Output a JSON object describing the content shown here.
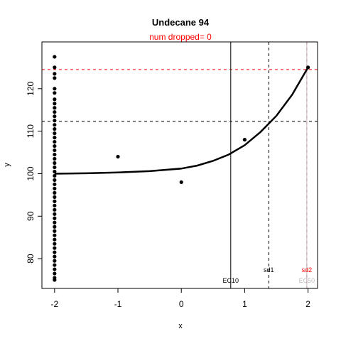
{
  "chart_data": {
    "type": "scatter",
    "title": "Undecane 94",
    "subtitle": "num dropped= 0",
    "xlabel": "x",
    "ylabel": "y",
    "xlim": [
      -2.2,
      2.15
    ],
    "ylim": [
      73,
      131
    ],
    "x_ticks": [
      -2,
      -1,
      0,
      1,
      2
    ],
    "y_ticks": [
      80,
      90,
      100,
      110,
      120
    ],
    "grid": false,
    "points": [
      {
        "x": -2,
        "y": 127.5
      },
      {
        "x": -2,
        "y": 125
      },
      {
        "x": -2,
        "y": 123.5
      },
      {
        "x": -2,
        "y": 122.5
      },
      {
        "x": -2,
        "y": 120
      },
      {
        "x": -2,
        "y": 119
      },
      {
        "x": -2,
        "y": 117.5
      },
      {
        "x": -2,
        "y": 116.5
      },
      {
        "x": -2,
        "y": 115.5
      },
      {
        "x": -2,
        "y": 114.5
      },
      {
        "x": -2,
        "y": 113.5
      },
      {
        "x": -2,
        "y": 112.5
      },
      {
        "x": -2,
        "y": 111.5
      },
      {
        "x": -2,
        "y": 110.5
      },
      {
        "x": -2,
        "y": 109.5
      },
      {
        "x": -2,
        "y": 108.5
      },
      {
        "x": -2,
        "y": 107.5
      },
      {
        "x": -2,
        "y": 106.5
      },
      {
        "x": -2,
        "y": 105.5
      },
      {
        "x": -2,
        "y": 104.5
      },
      {
        "x": -2,
        "y": 103.5
      },
      {
        "x": -2,
        "y": 102.5
      },
      {
        "x": -2,
        "y": 101.5
      },
      {
        "x": -2,
        "y": 100.5
      },
      {
        "x": -2,
        "y": 99.5
      },
      {
        "x": -2,
        "y": 98.5
      },
      {
        "x": -2,
        "y": 97.5
      },
      {
        "x": -2,
        "y": 96.5
      },
      {
        "x": -2,
        "y": 95.5
      },
      {
        "x": -2,
        "y": 94.5
      },
      {
        "x": -2,
        "y": 93.5
      },
      {
        "x": -2,
        "y": 92.5
      },
      {
        "x": -2,
        "y": 91.5
      },
      {
        "x": -2,
        "y": 90.5
      },
      {
        "x": -2,
        "y": 89.5
      },
      {
        "x": -2,
        "y": 88.5
      },
      {
        "x": -2,
        "y": 87.5
      },
      {
        "x": -2,
        "y": 86.5
      },
      {
        "x": -2,
        "y": 85.5
      },
      {
        "x": -2,
        "y": 84.5
      },
      {
        "x": -2,
        "y": 83.5
      },
      {
        "x": -2,
        "y": 82.5
      },
      {
        "x": -2,
        "y": 81.5
      },
      {
        "x": -2,
        "y": 80.5
      },
      {
        "x": -2,
        "y": 79.5
      },
      {
        "x": -2,
        "y": 78.5
      },
      {
        "x": -2,
        "y": 77.5
      },
      {
        "x": -2,
        "y": 76.5
      },
      {
        "x": -2,
        "y": 75.5
      },
      {
        "x": -2,
        "y": 75
      },
      {
        "x": -1,
        "y": 104
      },
      {
        "x": 0,
        "y": 98
      },
      {
        "x": 1,
        "y": 108
      },
      {
        "x": 2,
        "y": 125
      }
    ],
    "curve": {
      "baseline": 100,
      "points": [
        {
          "x": -2,
          "y": 100
        },
        {
          "x": -1.5,
          "y": 100.1
        },
        {
          "x": -1,
          "y": 100.3
        },
        {
          "x": -0.5,
          "y": 100.6
        },
        {
          "x": 0,
          "y": 101.2
        },
        {
          "x": 0.25,
          "y": 101.9
        },
        {
          "x": 0.5,
          "y": 103
        },
        {
          "x": 0.75,
          "y": 104.5
        },
        {
          "x": 1,
          "y": 106.7
        },
        {
          "x": 1.25,
          "y": 109.8
        },
        {
          "x": 1.5,
          "y": 113.6
        },
        {
          "x": 1.75,
          "y": 118.6
        },
        {
          "x": 2,
          "y": 125
        }
      ]
    },
    "reference_lines": {
      "horizontal": [
        {
          "y": 112.3,
          "color": "#000000",
          "dashed": true
        },
        {
          "y": 124.5,
          "color": "#ff0000",
          "dashed": true
        }
      ],
      "vertical": [
        {
          "x": 0.78,
          "color": "#000000",
          "dashed": false,
          "label": "EC10",
          "label_color": "#000000"
        },
        {
          "x": 1.38,
          "color": "#000000",
          "dashed": true,
          "label": "sd1",
          "label_color": "#000000"
        },
        {
          "x": 1.98,
          "color": "#ff0000",
          "dashed": true,
          "label": "sd2",
          "label_color": "#ff0000"
        },
        {
          "x": 1.98,
          "color": "#bebebe",
          "dashed": false,
          "label": "EC50",
          "label_color": "#bebebe"
        }
      ]
    },
    "colors": {
      "points": "#000000",
      "curve": "#000000",
      "subtitle": "#ff0000"
    }
  }
}
